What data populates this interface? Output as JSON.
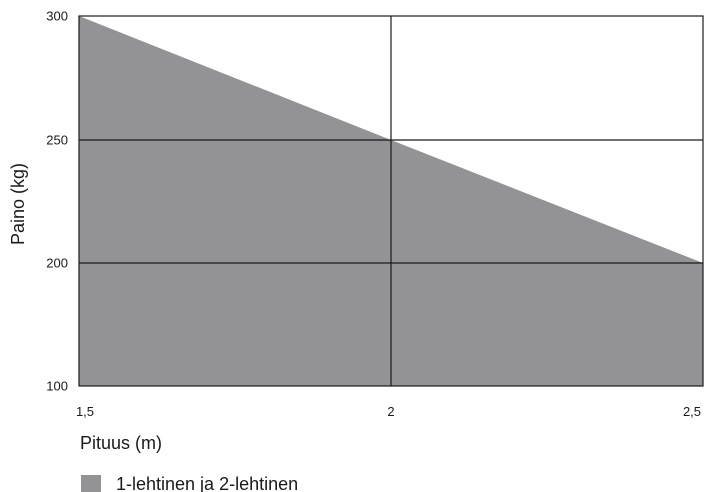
{
  "chart_data": {
    "type": "area",
    "title": "",
    "xlabel": "Pituus (m)",
    "ylabel": "Paino (kg)",
    "x_ticks": [
      {
        "value": 1.5,
        "label": "1,5"
      },
      {
        "value": 2.0,
        "label": "2"
      },
      {
        "value": 2.5,
        "label": "2,5"
      }
    ],
    "y_ticks": [
      {
        "value": 100,
        "label": "100"
      },
      {
        "value": 200,
        "label": "200"
      },
      {
        "value": 250,
        "label": "250"
      },
      {
        "value": 300,
        "label": "300"
      }
    ],
    "xlim": [
      1.5,
      2.5
    ],
    "ylim": [
      100,
      300
    ],
    "y_scale": "nonuniform",
    "grid": true,
    "legend_position": "bottom-left",
    "series": [
      {
        "name": "1-lehtinen ja 2-lehtinen",
        "color": "#939395",
        "x": [
          1.5,
          2.0,
          2.5
        ],
        "y": [
          300,
          250,
          200
        ]
      }
    ]
  }
}
